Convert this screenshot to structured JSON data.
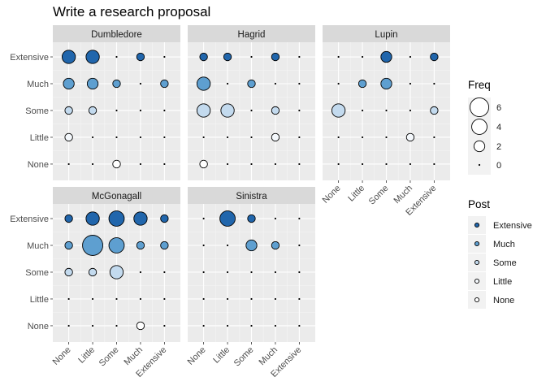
{
  "chart_data": {
    "type": "scatter",
    "title": "Write a research proposal",
    "x_categories": [
      "None",
      "Little",
      "Some",
      "Much",
      "Extensive"
    ],
    "y_categories": [
      "None",
      "Little",
      "Some",
      "Much",
      "Extensive"
    ],
    "size_legend": {
      "title": "Freq",
      "breaks": [
        6,
        4,
        2,
        0
      ]
    },
    "color_legend": {
      "title": "Post",
      "levels": [
        "Extensive",
        "Much",
        "Some",
        "Little",
        "None"
      ],
      "colors": {
        "Extensive": "#2166ac",
        "Much": "#5e9fd0",
        "Some": "#c3daee",
        "Little": "#f4f8fc",
        "None": "#ffffff"
      }
    },
    "panels": [
      {
        "name": "Dumbledore",
        "points": [
          {
            "x": "None",
            "y": "Extensive",
            "freq": 3
          },
          {
            "x": "Little",
            "y": "Extensive",
            "freq": 3
          },
          {
            "x": "Much",
            "y": "Extensive",
            "freq": 1
          },
          {
            "x": "None",
            "y": "Much",
            "freq": 2
          },
          {
            "x": "Little",
            "y": "Much",
            "freq": 2
          },
          {
            "x": "Some",
            "y": "Much",
            "freq": 1
          },
          {
            "x": "Extensive",
            "y": "Much",
            "freq": 1
          },
          {
            "x": "None",
            "y": "Some",
            "freq": 1
          },
          {
            "x": "Little",
            "y": "Some",
            "freq": 1
          },
          {
            "x": "None",
            "y": "Little",
            "freq": 1
          },
          {
            "x": "Some",
            "y": "None",
            "freq": 1
          }
        ]
      },
      {
        "name": "Hagrid",
        "points": [
          {
            "x": "None",
            "y": "Extensive",
            "freq": 1
          },
          {
            "x": "Little",
            "y": "Extensive",
            "freq": 1
          },
          {
            "x": "Much",
            "y": "Extensive",
            "freq": 1
          },
          {
            "x": "None",
            "y": "Much",
            "freq": 3
          },
          {
            "x": "Some",
            "y": "Much",
            "freq": 1
          },
          {
            "x": "None",
            "y": "Some",
            "freq": 3
          },
          {
            "x": "Little",
            "y": "Some",
            "freq": 3
          },
          {
            "x": "Much",
            "y": "Some",
            "freq": 1
          },
          {
            "x": "Much",
            "y": "Little",
            "freq": 1
          },
          {
            "x": "None",
            "y": "None",
            "freq": 1
          }
        ]
      },
      {
        "name": "Lupin",
        "points": [
          {
            "x": "Some",
            "y": "Extensive",
            "freq": 2
          },
          {
            "x": "Extensive",
            "y": "Extensive",
            "freq": 1
          },
          {
            "x": "Little",
            "y": "Much",
            "freq": 1
          },
          {
            "x": "Some",
            "y": "Much",
            "freq": 2
          },
          {
            "x": "None",
            "y": "Some",
            "freq": 3
          },
          {
            "x": "Extensive",
            "y": "Some",
            "freq": 1
          },
          {
            "x": "Much",
            "y": "Little",
            "freq": 1
          }
        ]
      },
      {
        "name": "McGonagall",
        "points": [
          {
            "x": "None",
            "y": "Extensive",
            "freq": 1
          },
          {
            "x": "Little",
            "y": "Extensive",
            "freq": 3
          },
          {
            "x": "Some",
            "y": "Extensive",
            "freq": 4
          },
          {
            "x": "Much",
            "y": "Extensive",
            "freq": 3
          },
          {
            "x": "Extensive",
            "y": "Extensive",
            "freq": 1
          },
          {
            "x": "None",
            "y": "Much",
            "freq": 1
          },
          {
            "x": "Little",
            "y": "Much",
            "freq": 7
          },
          {
            "x": "Some",
            "y": "Much",
            "freq": 4
          },
          {
            "x": "Much",
            "y": "Much",
            "freq": 1
          },
          {
            "x": "Extensive",
            "y": "Much",
            "freq": 1
          },
          {
            "x": "None",
            "y": "Some",
            "freq": 1
          },
          {
            "x": "Little",
            "y": "Some",
            "freq": 1
          },
          {
            "x": "Some",
            "y": "Some",
            "freq": 3
          },
          {
            "x": "Much",
            "y": "None",
            "freq": 1
          }
        ]
      },
      {
        "name": "Sinistra",
        "points": [
          {
            "x": "Little",
            "y": "Extensive",
            "freq": 4
          },
          {
            "x": "Some",
            "y": "Extensive",
            "freq": 1
          },
          {
            "x": "Some",
            "y": "Much",
            "freq": 2
          },
          {
            "x": "Much",
            "y": "Much",
            "freq": 1
          }
        ]
      }
    ]
  }
}
